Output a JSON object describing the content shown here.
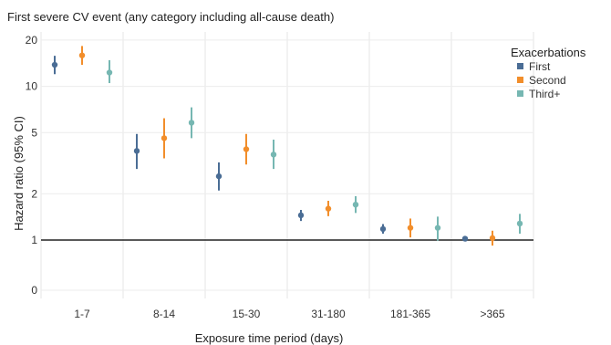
{
  "chart_data": {
    "type": "scatter",
    "title": "First severe CV event (any category including all-cause death)",
    "xlabel": "Exposure time period (days)",
    "ylabel": "Hazard ratio (95% CI)",
    "y_scale": "log",
    "y_ticks": [
      "0",
      "1",
      "2",
      "5",
      "10",
      "20"
    ],
    "reference_line": 1,
    "grid": true,
    "categories": [
      "1-7",
      "8-14",
      "15-30",
      "31-180",
      "181-365",
      ">365"
    ],
    "legend": {
      "title": "Exacerbations",
      "placement": "right"
    },
    "series": [
      {
        "name": "First",
        "color": "#4a6d95",
        "values": [
          13.8,
          3.8,
          2.6,
          1.45,
          1.18,
          1.02
        ],
        "lower": [
          12.0,
          2.9,
          2.1,
          1.33,
          1.1,
          0.99
        ],
        "upper": [
          15.8,
          4.9,
          3.2,
          1.57,
          1.27,
          1.05
        ]
      },
      {
        "name": "Second",
        "color": "#f28e2b",
        "values": [
          15.9,
          4.6,
          3.9,
          1.6,
          1.2,
          1.03
        ],
        "lower": [
          13.8,
          3.4,
          3.1,
          1.43,
          1.04,
          0.92
        ],
        "upper": [
          18.3,
          6.2,
          4.9,
          1.8,
          1.38,
          1.15
        ]
      },
      {
        "name": "Third+",
        "color": "#76b7b2",
        "values": [
          12.3,
          5.8,
          3.6,
          1.7,
          1.2,
          1.28
        ],
        "lower": [
          10.5,
          4.6,
          2.9,
          1.5,
          0.99,
          1.1
        ],
        "upper": [
          14.8,
          7.3,
          4.5,
          1.93,
          1.42,
          1.48
        ]
      }
    ]
  }
}
